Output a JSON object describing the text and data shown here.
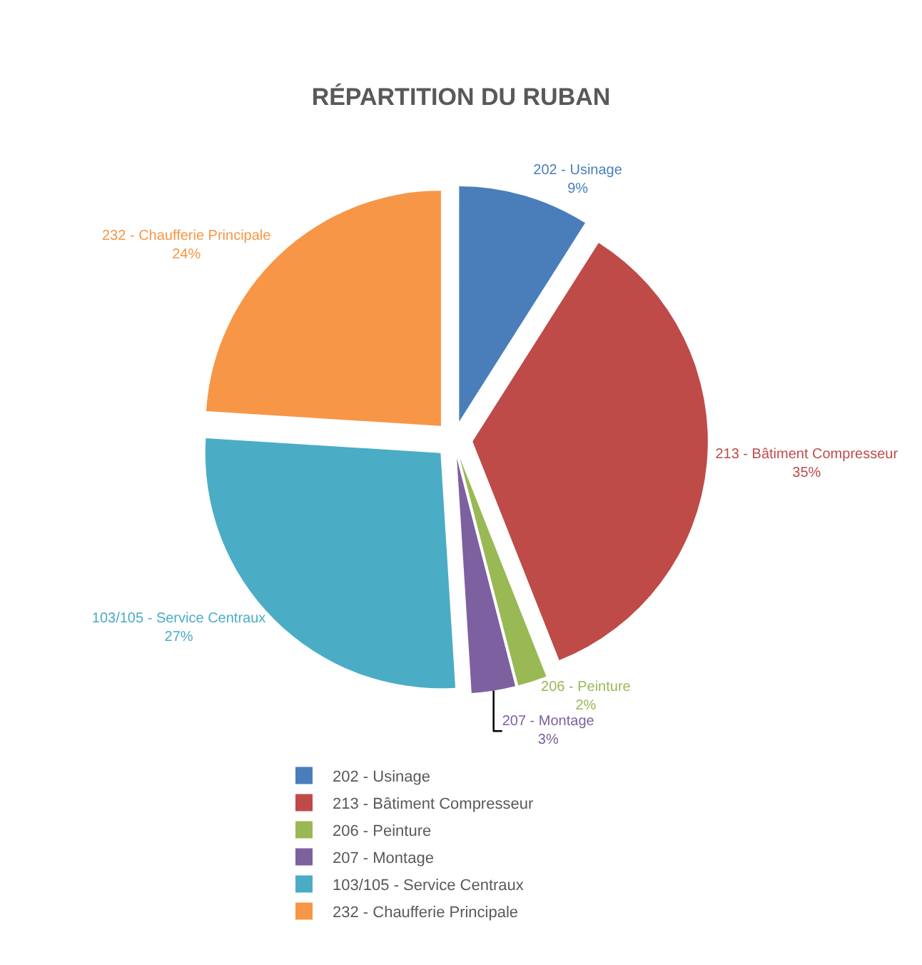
{
  "chart_data": {
    "type": "pie",
    "title": "RÉPARTITION DU RUBAN",
    "categories": [
      "202 - Usinage",
      "213 - Bâtiment Compresseur",
      "206 - Peinture",
      "207 - Montage",
      "103/105 - Service Centraux",
      "232 - Chaufferie Principale"
    ],
    "values": [
      9,
      35,
      2,
      3,
      27,
      24
    ],
    "value_labels": [
      "9%",
      "35%",
      "2%",
      "3%",
      "27%",
      "24%"
    ],
    "colors": [
      "#4a7ebb",
      "#be4b48",
      "#98b954",
      "#7d60a0",
      "#4bacc6",
      "#f79646"
    ],
    "legend": "bottom"
  }
}
